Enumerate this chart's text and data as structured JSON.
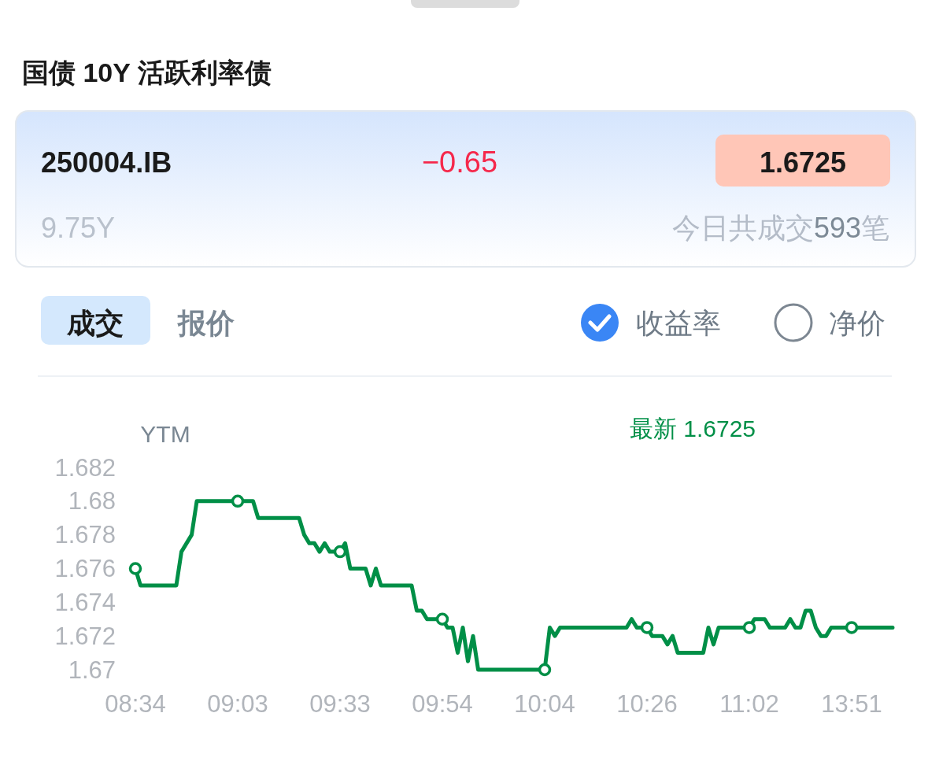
{
  "chart_data": {
    "type": "line",
    "title": "国债 10Y 活跃利率债",
    "ylabel": "YTM",
    "annotations": [
      "250004.IB",
      "−0.65",
      "1.6725",
      "9.75Y",
      "今日共成交593笔",
      "成交",
      "报价",
      "收益率",
      "净价"
    ],
    "categories": [
      "08:34",
      null,
      null,
      null,
      null,
      null,
      null,
      null,
      null,
      null,
      null,
      null,
      null,
      null,
      null,
      null,
      null,
      null,
      null,
      null,
      "09:03",
      null,
      null,
      null,
      null,
      null,
      null,
      null,
      null,
      null,
      null,
      null,
      null,
      null,
      null,
      null,
      null,
      null,
      null,
      null,
      "09:33",
      null,
      null,
      null,
      null,
      null,
      null,
      null,
      null,
      null,
      null,
      null,
      null,
      null,
      null,
      null,
      null,
      null,
      null,
      null,
      "09:54",
      null,
      null,
      null,
      null,
      null,
      null,
      null,
      null,
      null,
      null,
      null,
      null,
      null,
      null,
      null,
      null,
      null,
      null,
      null,
      "10:04",
      null,
      null,
      null,
      null,
      null,
      null,
      null,
      null,
      null,
      null,
      null,
      null,
      null,
      null,
      null,
      null,
      null,
      null,
      null,
      "10:26",
      null,
      null,
      null,
      null,
      null,
      null,
      null,
      null,
      null,
      null,
      null,
      null,
      null,
      null,
      null,
      null,
      null,
      null,
      null,
      "11:02",
      null,
      null,
      null,
      null,
      null,
      null,
      null,
      null,
      null,
      null,
      null,
      null,
      null,
      null,
      null,
      null,
      null,
      null,
      null,
      "13:51",
      null,
      null,
      null,
      null,
      null,
      null,
      null,
      null
    ],
    "ylim": [
      1.67,
      1.682
    ],
    "yticks": [
      1.67,
      1.672,
      1.674,
      1.676,
      1.678,
      1.68,
      1.682
    ],
    "legend": "top right",
    "series": [
      {
        "name": "最新 1.6725",
        "color": "#008f47",
        "line_style": "solid",
        "values": [
          1.676,
          1.675,
          1.675,
          1.675,
          1.675,
          1.675,
          1.675,
          1.675,
          1.675,
          1.677,
          1.6775,
          1.678,
          1.68,
          1.68,
          1.68,
          1.68,
          1.68,
          1.68,
          1.68,
          1.68,
          1.68,
          1.68,
          1.68,
          1.68,
          1.679,
          1.679,
          1.679,
          1.679,
          1.679,
          1.679,
          1.679,
          1.679,
          1.679,
          1.678,
          1.6775,
          1.6775,
          1.677,
          1.6775,
          1.677,
          1.677,
          1.677,
          1.6775,
          1.676,
          1.676,
          1.676,
          1.676,
          1.675,
          1.676,
          1.675,
          1.675,
          1.675,
          1.675,
          1.675,
          1.675,
          1.675,
          1.6735,
          1.6735,
          1.673,
          1.673,
          1.673,
          1.673,
          1.6725,
          1.6725,
          1.671,
          1.6725,
          1.6705,
          1.672,
          1.67,
          1.67,
          1.67,
          1.67,
          1.67,
          1.67,
          1.67,
          1.67,
          1.67,
          1.67,
          1.67,
          1.67,
          1.67,
          1.67,
          1.6725,
          1.672,
          1.6725,
          1.6725,
          1.6725,
          1.6725,
          1.6725,
          1.6725,
          1.6725,
          1.6725,
          1.6725,
          1.6725,
          1.6725,
          1.6725,
          1.6725,
          1.6725,
          1.673,
          1.6725,
          1.6725,
          1.6725,
          1.672,
          1.672,
          1.672,
          1.6715,
          1.672,
          1.671,
          1.671,
          1.671,
          1.671,
          1.671,
          1.671,
          1.6725,
          1.6715,
          1.6725,
          1.6725,
          1.6725,
          1.6725,
          1.6725,
          1.6725,
          1.6725,
          1.673,
          1.673,
          1.673,
          1.6725,
          1.6725,
          1.6725,
          1.6725,
          1.673,
          1.6725,
          1.6725,
          1.6735,
          1.6735,
          1.6725,
          1.672,
          1.672,
          1.6725,
          1.6725,
          1.6725,
          1.6725,
          1.6725,
          1.6725,
          1.6725,
          1.6725,
          1.6725,
          1.6725,
          1.6725,
          1.6725,
          1.6725
        ]
      },
      {
        "type": "scatter",
        "color": "#008f47",
        "marker": "circle",
        "x": [
          "08:34",
          "09:03",
          "09:33",
          "09:54",
          "10:04",
          "10:26",
          "11:02",
          "13:51"
        ],
        "values": [
          1.676,
          1.68,
          1.677,
          1.673,
          1.67,
          1.6725,
          1.6725,
          1.6725
        ]
      }
    ]
  }
}
